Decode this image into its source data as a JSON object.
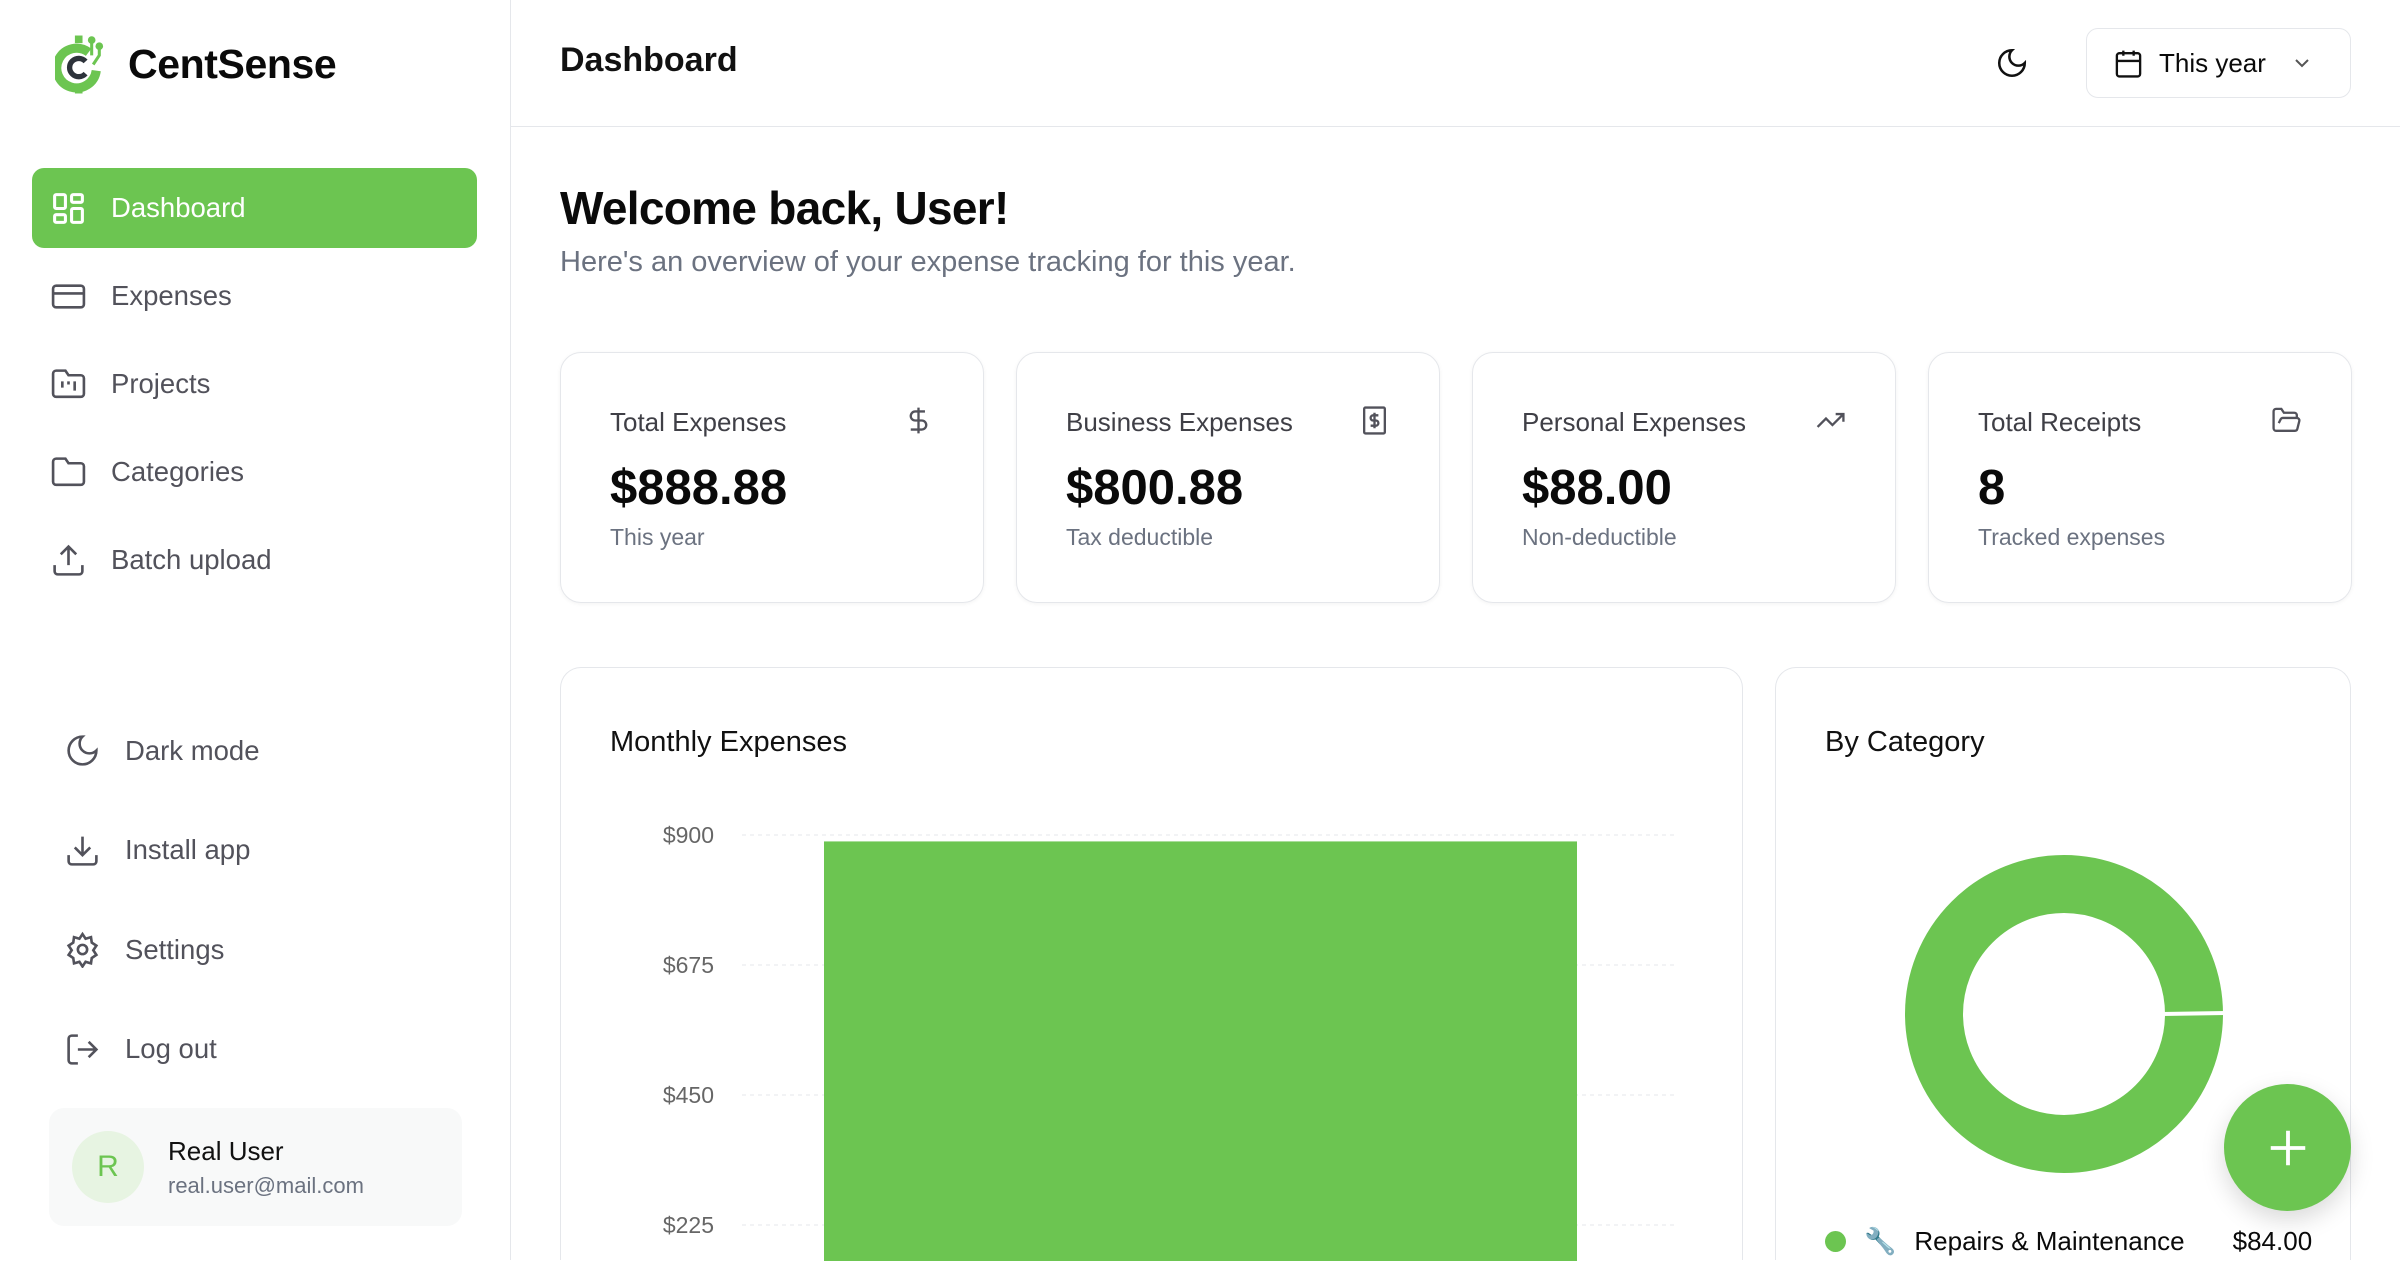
{
  "app": {
    "name": "CentSense"
  },
  "sidebar": {
    "items": [
      {
        "label": "Dashboard",
        "icon": "layout-grid-icon",
        "active": true
      },
      {
        "label": "Expenses",
        "icon": "credit-card-icon"
      },
      {
        "label": "Projects",
        "icon": "folder-kanban-icon"
      },
      {
        "label": "Categories",
        "icon": "folder-icon"
      },
      {
        "label": "Batch upload",
        "icon": "upload-icon"
      }
    ],
    "bottom": [
      {
        "label": "Dark mode",
        "icon": "moon-icon"
      },
      {
        "label": "Install app",
        "icon": "download-icon"
      },
      {
        "label": "Settings",
        "icon": "gear-icon"
      },
      {
        "label": "Log out",
        "icon": "log-out-icon"
      }
    ],
    "user": {
      "initial": "R",
      "name": "Real User",
      "email": "real.user@mail.com"
    }
  },
  "header": {
    "title": "Dashboard",
    "range": "This year"
  },
  "main": {
    "welcome": "Welcome back, User!",
    "subtitle": "Here's an overview of your expense tracking for this year.",
    "cards": [
      {
        "label": "Total Expenses",
        "value": "$888.88",
        "note": "This year",
        "icon": "dollar-icon"
      },
      {
        "label": "Business Expenses",
        "value": "$800.88",
        "note": "Tax deductible",
        "icon": "receipt-icon"
      },
      {
        "label": "Personal Expenses",
        "value": "$88.00",
        "note": "Non-deductible",
        "icon": "trending-up-icon"
      },
      {
        "label": "Total Receipts",
        "value": "8",
        "note": "Tracked expenses",
        "icon": "folder-open-icon"
      }
    ]
  },
  "colors": {
    "accent": "#6cc551"
  },
  "chart_data": [
    {
      "type": "bar",
      "title": "Monthly Expenses",
      "yticks": [
        "$900",
        "$675",
        "$450",
        "$225"
      ],
      "ylim": [
        0,
        900
      ],
      "values": [
        888.88
      ],
      "grid": true
    },
    {
      "type": "pie",
      "title": "By Category",
      "legend": [
        {
          "label": "Repairs & Maintenance",
          "value": "$84.00",
          "icon": "wrench-icon"
        }
      ],
      "slices": [
        {
          "label": "Repairs & Maintenance",
          "value": 100
        }
      ]
    }
  ]
}
